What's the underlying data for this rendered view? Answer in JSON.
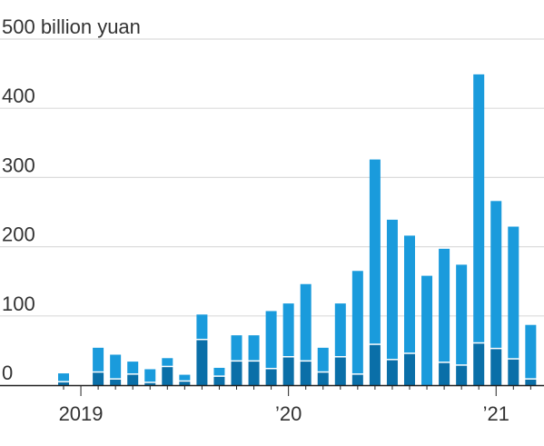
{
  "chart_data": {
    "type": "bar",
    "stacked": true,
    "yunit_label": "500 billion yuan",
    "ylim": [
      0,
      500
    ],
    "yticks": [
      {
        "value": 0,
        "label": "0"
      },
      {
        "value": 100,
        "label": "100"
      },
      {
        "value": 200,
        "label": "200"
      },
      {
        "value": 300,
        "label": "300"
      },
      {
        "value": 400,
        "label": "400"
      }
    ],
    "x_labels": [
      {
        "index": 1,
        "label": "2019"
      },
      {
        "index": 13,
        "label": "’20"
      },
      {
        "index": 25,
        "label": "’21"
      }
    ],
    "grid": true,
    "colors": {
      "dark": "#0a6fa8",
      "light": "#1a9bdc",
      "grid": "#dcdcdc",
      "axis": "#222222",
      "text": "#333333"
    },
    "months": [
      "2019-01",
      "2019-02",
      "2019-03",
      "2019-04",
      "2019-05",
      "2019-06",
      "2019-07",
      "2019-08",
      "2019-09",
      "2019-10",
      "2019-11",
      "2019-12",
      "2020-01",
      "2020-02",
      "2020-03",
      "2020-04",
      "2020-05",
      "2020-06",
      "2020-07",
      "2020-08",
      "2020-09",
      "2020-10",
      "2020-11",
      "2020-12",
      "2021-01",
      "2021-02",
      "2021-03",
      "2021-04"
    ],
    "series": [
      {
        "color_key": "dark",
        "values": [
          4,
          0,
          18,
          8,
          15,
          3,
          26,
          5,
          65,
          12,
          34,
          34,
          23,
          40,
          34,
          18,
          40,
          15,
          58,
          36,
          45,
          0,
          32,
          28,
          60,
          52,
          37,
          8
        ]
      },
      {
        "color_key": "light",
        "values": [
          13,
          0,
          36,
          36,
          19,
          20,
          13,
          10,
          37,
          13,
          38,
          38,
          84,
          78,
          112,
          36,
          78,
          150,
          268,
          203,
          171,
          158,
          165,
          146,
          389,
          214,
          192,
          79
        ]
      }
    ]
  }
}
